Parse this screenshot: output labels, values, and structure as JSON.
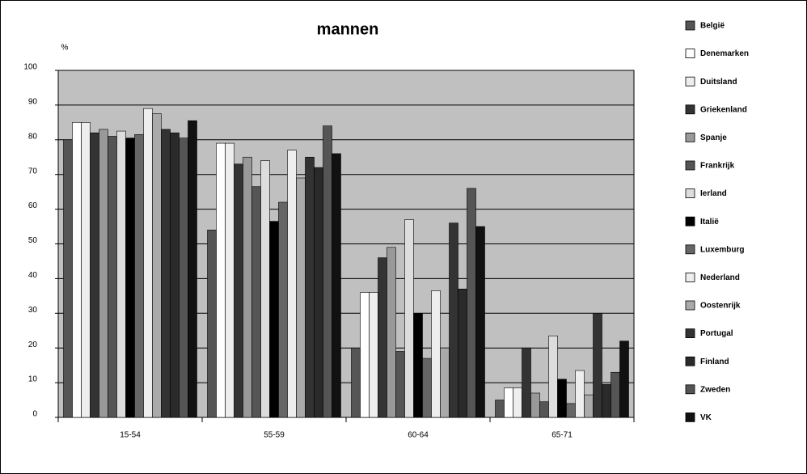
{
  "chart_data": {
    "type": "bar",
    "title": "mannen",
    "y_unit": "%",
    "categories": [
      "15-54",
      "55-59",
      "60-64",
      "65-71"
    ],
    "series": [
      {
        "name": "België",
        "color": "#555555",
        "values": [
          80,
          54,
          20,
          5
        ]
      },
      {
        "name": "Denemarken",
        "color": "#ffffff",
        "values": [
          85,
          79,
          36,
          8.5
        ]
      },
      {
        "name": "Duitsland",
        "color": "#eeeeee",
        "values": [
          85,
          79,
          36,
          8.5
        ]
      },
      {
        "name": "Griekenland",
        "color": "#333333",
        "values": [
          82,
          73,
          46,
          20
        ]
      },
      {
        "name": "Spanje",
        "color": "#999999",
        "values": [
          83,
          75,
          49,
          7
        ]
      },
      {
        "name": "Frankrijk",
        "color": "#555555",
        "values": [
          81,
          66.5,
          19,
          4.5
        ]
      },
      {
        "name": "Ierland",
        "color": "#dddddd",
        "values": [
          82.5,
          74,
          57,
          23.5
        ]
      },
      {
        "name": "Italië",
        "color": "#000000",
        "values": [
          80.5,
          56.5,
          30,
          11
        ]
      },
      {
        "name": "Luxemburg",
        "color": "#666666",
        "values": [
          81.5,
          62,
          17,
          4
        ]
      },
      {
        "name": "Nederland",
        "color": "#eeeeee",
        "values": [
          89,
          77,
          36.5,
          13.5
        ]
      },
      {
        "name": "Oostenrijk",
        "color": "#aaaaaa",
        "values": [
          87.5,
          69,
          20,
          6.5
        ]
      },
      {
        "name": "Portugal",
        "color": "#333333",
        "values": [
          83,
          75,
          56,
          30
        ]
      },
      {
        "name": "Finland",
        "color": "#2a2a2a",
        "values": [
          82,
          72,
          37,
          9.5
        ]
      },
      {
        "name": "Zweden",
        "color": "#555555",
        "values": [
          80.5,
          84,
          66,
          13
        ]
      },
      {
        "name": "VK",
        "color": "#111111",
        "values": [
          85.5,
          76,
          55,
          22
        ]
      }
    ],
    "ylim": [
      0,
      100
    ],
    "yticks": [
      0,
      10,
      20,
      30,
      40,
      50,
      60,
      70,
      80,
      90,
      100
    ],
    "grid": true,
    "legend": "right"
  }
}
